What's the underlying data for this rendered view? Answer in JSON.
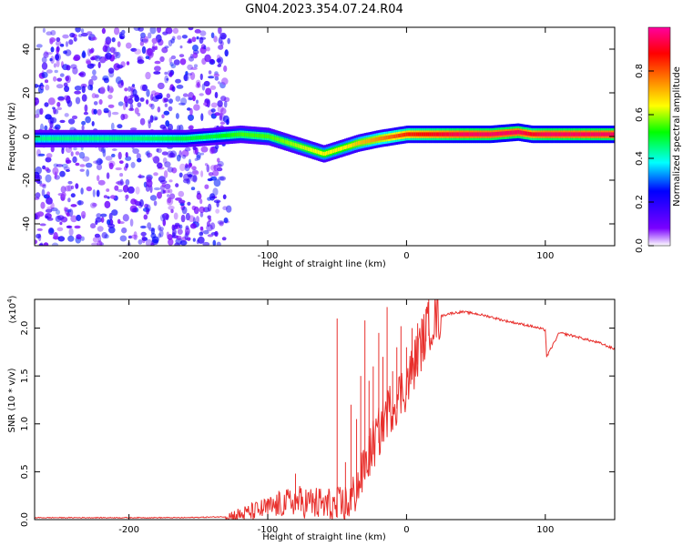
{
  "title": "GN04.2023.354.07.24.R04",
  "chart_data": [
    {
      "type": "heatmap",
      "xlabel": "Height of straight line (km)",
      "ylabel": "Frequency (Hz)",
      "xlim": [
        -268,
        150
      ],
      "ylim": [
        -50,
        50
      ],
      "xticks": [
        -200,
        -100,
        0,
        100
      ],
      "yticks": [
        -40,
        -20,
        0,
        20,
        40
      ],
      "colorbar": {
        "label": "Normalized spectral amplitude",
        "range": [
          0,
          1
        ],
        "ticks": [
          "0.0",
          "0.2",
          "0.4",
          "0.6",
          "0.8"
        ],
        "colormap": [
          "#ffffff",
          "#7a00ff",
          "#0000ff",
          "#00ffff",
          "#00ff00",
          "#ffff00",
          "#ff8000",
          "#ff0000",
          "#ff00a0"
        ]
      },
      "ridge": {
        "x": [
          -268,
          -240,
          -200,
          -160,
          -140,
          -120,
          -100,
          -80,
          -60,
          -45,
          -35,
          -20,
          -10,
          0,
          20,
          40,
          60,
          80,
          90,
          100,
          120,
          150
        ],
        "y": [
          -1,
          -1,
          -1,
          -1,
          0,
          1,
          0,
          -4,
          -8,
          -5,
          -3,
          -1,
          0,
          1,
          1,
          1,
          1,
          2,
          1,
          1,
          1,
          1
        ],
        "peak_amplitude": [
          0.45,
          0.45,
          0.45,
          0.5,
          0.5,
          0.55,
          0.55,
          0.6,
          0.65,
          0.65,
          0.7,
          0.75,
          0.8,
          0.85,
          0.9,
          0.95,
          0.95,
          0.95,
          0.9,
          0.95,
          0.95,
          0.95
        ]
      }
    },
    {
      "type": "line",
      "xlabel": "Height of straight line (km)",
      "ylabel": "SNR (10 * v/v)",
      "multiplier": "(x10",
      "multiplier_exp": "4",
      "multiplier_close": ")",
      "xlim": [
        -268,
        150
      ],
      "ylim": [
        0,
        2.3
      ],
      "xticks": [
        -200,
        -100,
        0,
        100
      ],
      "yticks": [
        "0.0",
        "0.5",
        "1.0",
        "1.5",
        "2.0"
      ],
      "color": "#e8302d",
      "x": [
        -268,
        -240,
        -200,
        -160,
        -130,
        -120,
        -100,
        -80,
        -60,
        -50,
        -45,
        -40,
        -35,
        -30,
        -25,
        -20,
        -15,
        -10,
        -5,
        0,
        5,
        10,
        15,
        20,
        30,
        40,
        50,
        60,
        70,
        80,
        90,
        100,
        101,
        110,
        120,
        130,
        140,
        150
      ],
      "y": [
        0.02,
        0.02,
        0.02,
        0.02,
        0.03,
        0.05,
        0.12,
        0.2,
        0.15,
        0.12,
        0.15,
        0.2,
        0.35,
        0.55,
        0.75,
        0.9,
        1.1,
        1.2,
        1.3,
        1.4,
        1.6,
        1.8,
        2.0,
        2.1,
        2.15,
        2.17,
        2.15,
        2.12,
        2.08,
        2.05,
        2.02,
        1.98,
        1.7,
        1.95,
        1.92,
        1.88,
        1.84,
        1.78
      ],
      "spikes": [
        {
          "x": -100,
          "y": 0.22
        },
        {
          "x": -92,
          "y": 0.3
        },
        {
          "x": -80,
          "y": 0.48
        },
        {
          "x": -76,
          "y": 0.32
        },
        {
          "x": -66,
          "y": 0.22
        },
        {
          "x": -57,
          "y": 0.26
        },
        {
          "x": -50,
          "y": 2.1
        },
        {
          "x": -44,
          "y": 0.6
        },
        {
          "x": -40,
          "y": 1.2
        },
        {
          "x": -36,
          "y": 1.05
        },
        {
          "x": -33,
          "y": 1.5
        },
        {
          "x": -30,
          "y": 2.08
        },
        {
          "x": -27,
          "y": 1.45
        },
        {
          "x": -24,
          "y": 1.6
        },
        {
          "x": -20,
          "y": 1.95
        },
        {
          "x": -17,
          "y": 1.7
        },
        {
          "x": -14,
          "y": 2.22
        },
        {
          "x": -10,
          "y": 1.55
        },
        {
          "x": -7,
          "y": 1.8
        },
        {
          "x": -4,
          "y": 2.02
        },
        {
          "x": 0,
          "y": 1.8
        },
        {
          "x": 4,
          "y": 2.0
        },
        {
          "x": 8,
          "y": 2.05
        },
        {
          "x": 11,
          "y": 2.1
        },
        {
          "x": 14,
          "y": 2.2
        },
        {
          "x": 16,
          "y": 2.3
        }
      ]
    }
  ]
}
